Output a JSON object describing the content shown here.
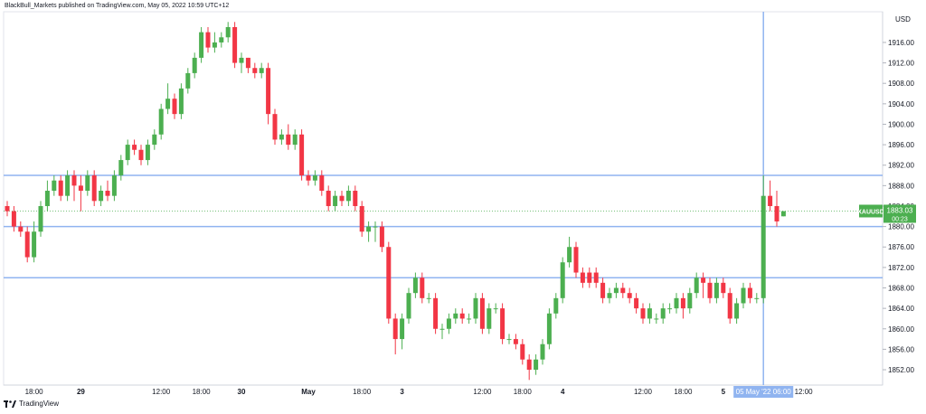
{
  "header": {
    "published": "BlackBull_Markets published on TradingView.com, May 05, 2022 10:59 UTC+12"
  },
  "footer": {
    "brand": "TradingView"
  },
  "chart_data": {
    "type": "candlestick",
    "symbol": "XAUUSD",
    "currency_label": "USD",
    "last_price_label": "1883.03",
    "countdown_label": "00:23",
    "crosshair_time_label": "05 May '22  06:00",
    "ylim": [
      1849,
      1922
    ],
    "y_ticks": [
      1852,
      1856,
      1860,
      1864,
      1868,
      1872,
      1876,
      1880,
      1884,
      1888,
      1892,
      1896,
      1900,
      1904,
      1908,
      1912,
      1916
    ],
    "x_ticks": [
      {
        "label": "18:00",
        "i": 4
      },
      {
        "label": "29",
        "i": 11
      },
      {
        "label": "12:00",
        "i": 23
      },
      {
        "label": "18:00",
        "i": 29
      },
      {
        "label": "30",
        "i": 35
      },
      {
        "label": "May",
        "i": 45
      },
      {
        "label": "18:00",
        "i": 53
      },
      {
        "label": "3",
        "i": 59
      },
      {
        "label": "12:00",
        "i": 71
      },
      {
        "label": "18:00",
        "i": 77
      },
      {
        "label": "4",
        "i": 83
      },
      {
        "label": "12:00",
        "i": 95
      },
      {
        "label": "18:00",
        "i": 101
      },
      {
        "label": "5",
        "i": 107
      },
      {
        "label": "12:00",
        "i": 119
      }
    ],
    "horizontal_levels": [
      1890,
      1880,
      1870
    ],
    "last_price": 1883.03,
    "crosshair_index": 113,
    "candles": [
      [
        1884,
        1883,
        1885,
        1882
      ],
      [
        1883,
        1880,
        1884,
        1879
      ],
      [
        1880,
        1879,
        1881,
        1878
      ],
      [
        1879,
        1874,
        1880,
        1873
      ],
      [
        1874,
        1879,
        1881,
        1873
      ],
      [
        1879,
        1884,
        1885,
        1878
      ],
      [
        1884,
        1887,
        1889,
        1883
      ],
      [
        1887,
        1889,
        1890,
        1886
      ],
      [
        1889,
        1886,
        1890,
        1885
      ],
      [
        1886,
        1890,
        1891,
        1885
      ],
      [
        1890,
        1888,
        1891,
        1885
      ],
      [
        1888,
        1887,
        1890,
        1883
      ],
      [
        1887,
        1890,
        1891,
        1886
      ],
      [
        1890,
        1885,
        1891,
        1884
      ],
      [
        1885,
        1887,
        1888,
        1884
      ],
      [
        1887,
        1886,
        1889,
        1885
      ],
      [
        1886,
        1890,
        1891,
        1885
      ],
      [
        1890,
        1893,
        1894,
        1889
      ],
      [
        1893,
        1896,
        1897,
        1892
      ],
      [
        1896,
        1895,
        1897,
        1894
      ],
      [
        1895,
        1893,
        1896,
        1892
      ],
      [
        1893,
        1896,
        1897,
        1892
      ],
      [
        1896,
        1898,
        1899,
        1895
      ],
      [
        1898,
        1903,
        1904,
        1897
      ],
      [
        1903,
        1905,
        1908,
        1902
      ],
      [
        1905,
        1902,
        1906,
        1901
      ],
      [
        1902,
        1907,
        1908,
        1901
      ],
      [
        1907,
        1910,
        1911,
        1906
      ],
      [
        1910,
        1913,
        1914,
        1909
      ],
      [
        1913,
        1918,
        1919,
        1912
      ],
      [
        1918,
        1915,
        1919,
        1914
      ],
      [
        1915,
        1916,
        1918,
        1914
      ],
      [
        1916,
        1917,
        1918,
        1915
      ],
      [
        1917,
        1919,
        1920,
        1916
      ],
      [
        1919,
        1912,
        1920,
        1911
      ],
      [
        1912,
        1913,
        1914,
        1910
      ],
      [
        1913,
        1911,
        1913,
        1910
      ],
      [
        1911,
        1910,
        1912,
        1909
      ],
      [
        1910,
        1911,
        1912,
        1909
      ],
      [
        1911,
        1902,
        1912,
        1900
      ],
      [
        1902,
        1897,
        1903,
        1896
      ],
      [
        1897,
        1898,
        1899,
        1896
      ],
      [
        1898,
        1896,
        1900,
        1895
      ],
      [
        1896,
        1898,
        1899,
        1895
      ],
      [
        1898,
        1890,
        1899,
        1889
      ],
      [
        1890,
        1889,
        1891,
        1888
      ],
      [
        1889,
        1890,
        1891,
        1888
      ],
      [
        1890,
        1887,
        1891,
        1886
      ],
      [
        1887,
        1884,
        1888,
        1883
      ],
      [
        1884,
        1886,
        1887,
        1883
      ],
      [
        1886,
        1885,
        1887,
        1884
      ],
      [
        1885,
        1887,
        1888,
        1884
      ],
      [
        1887,
        1884,
        1888,
        1883
      ],
      [
        1884,
        1879,
        1885,
        1878
      ],
      [
        1879,
        1880,
        1881,
        1877
      ],
      [
        1880,
        1880,
        1881,
        1877
      ],
      [
        1880,
        1876,
        1881,
        1875
      ],
      [
        1876,
        1862,
        1877,
        1861
      ],
      [
        1862,
        1858,
        1863,
        1855
      ],
      [
        1858,
        1862,
        1863,
        1856
      ],
      [
        1862,
        1867,
        1868,
        1861
      ],
      [
        1867,
        1870,
        1871,
        1866
      ],
      [
        1870,
        1866,
        1871,
        1865
      ],
      [
        1866,
        1866,
        1867,
        1865
      ],
      [
        1866,
        1860,
        1867,
        1859
      ],
      [
        1860,
        1860,
        1861,
        1858
      ],
      [
        1860,
        1862,
        1863,
        1859
      ],
      [
        1862,
        1863,
        1864,
        1861
      ],
      [
        1863,
        1862,
        1864,
        1861
      ],
      [
        1862,
        1862,
        1863,
        1861
      ],
      [
        1862,
        1866,
        1867,
        1861
      ],
      [
        1866,
        1860,
        1867,
        1859
      ],
      [
        1860,
        1864,
        1865,
        1859
      ],
      [
        1864,
        1864,
        1865,
        1863
      ],
      [
        1864,
        1858,
        1865,
        1857
      ],
      [
        1858,
        1858,
        1859,
        1857
      ],
      [
        1858,
        1857,
        1859,
        1856
      ],
      [
        1857,
        1854,
        1858,
        1853
      ],
      [
        1854,
        1852,
        1855,
        1850
      ],
      [
        1852,
        1854,
        1855,
        1851
      ],
      [
        1854,
        1857,
        1858,
        1853
      ],
      [
        1857,
        1863,
        1864,
        1856
      ],
      [
        1863,
        1866,
        1867,
        1862
      ],
      [
        1866,
        1873,
        1874,
        1865
      ],
      [
        1873,
        1876,
        1878,
        1872
      ],
      [
        1876,
        1871,
        1877,
        1870
      ],
      [
        1871,
        1869,
        1872,
        1868
      ],
      [
        1871,
        1869,
        1872,
        1868
      ],
      [
        1871,
        1869,
        1872,
        1868
      ],
      [
        1869,
        1866,
        1870,
        1865
      ],
      [
        1866,
        1867,
        1868,
        1865
      ],
      [
        1867,
        1868,
        1869,
        1866
      ],
      [
        1868,
        1867,
        1869,
        1866
      ],
      [
        1867,
        1866,
        1868,
        1865
      ],
      [
        1866,
        1864,
        1867,
        1863
      ],
      [
        1864,
        1862,
        1865,
        1861
      ],
      [
        1862,
        1864,
        1865,
        1861
      ],
      [
        1862,
        1862,
        1863,
        1861
      ],
      [
        1862,
        1864,
        1865,
        1861
      ],
      [
        1864,
        1864,
        1865,
        1863
      ],
      [
        1864,
        1866,
        1867,
        1863
      ],
      [
        1866,
        1864,
        1867,
        1862
      ],
      [
        1864,
        1867,
        1868,
        1863
      ],
      [
        1867,
        1870,
        1871,
        1866
      ],
      [
        1870,
        1869,
        1871,
        1866
      ],
      [
        1869,
        1866,
        1870,
        1865
      ],
      [
        1866,
        1869,
        1870,
        1865
      ],
      [
        1869,
        1867,
        1870,
        1866
      ],
      [
        1867,
        1862,
        1868,
        1861
      ],
      [
        1862,
        1865,
        1866,
        1861
      ],
      [
        1865,
        1868,
        1869,
        1864
      ],
      [
        1868,
        1866,
        1869,
        1865
      ],
      [
        1866,
        1866,
        1867,
        1865
      ],
      [
        1866,
        1886,
        1890,
        1865
      ],
      [
        1886,
        1884,
        1889,
        1883
      ],
      [
        1884,
        1881,
        1887,
        1880
      ],
      [
        1882,
        1883,
        1883,
        1882
      ]
    ]
  }
}
